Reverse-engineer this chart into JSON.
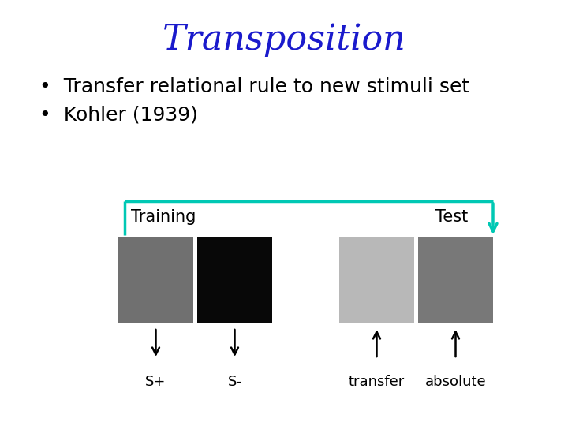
{
  "title": "Transposition",
  "title_color": "#1a1acc",
  "title_fontsize": 32,
  "bullet1": "Transfer relational rule to new stimuli set",
  "bullet2": "Kohler (1939)",
  "bullet_fontsize": 18,
  "bullet_color": "#000000",
  "training_label": "Training",
  "test_label": "Test",
  "label_fontsize": 15,
  "bracket_color": "#00c8b4",
  "box_colors": [
    "#707070",
    "#080808",
    "#b8b8b8",
    "#787878"
  ],
  "s_plus_label": "S+",
  "s_minus_label": "S-",
  "transfer_label": "transfer",
  "absolute_label": "absolute",
  "sublabel_fontsize": 13
}
